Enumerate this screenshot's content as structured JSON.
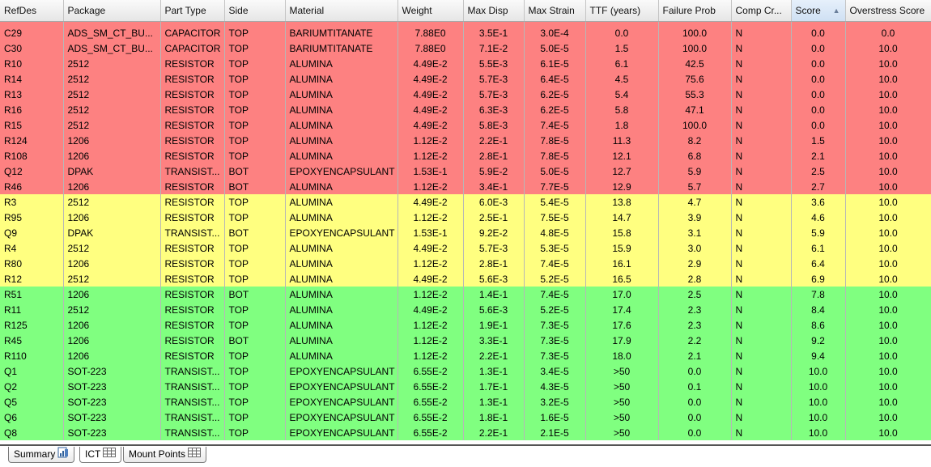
{
  "columns": [
    "RefDes",
    "Package",
    "Part Type",
    "Side",
    "Material",
    "Weight",
    "Max Disp",
    "Max Strain",
    "TTF (years)",
    "Failure Prob",
    "Comp Cr...",
    "Score",
    "Overstress Score"
  ],
  "sorted_column": "Score",
  "sort_direction": "ascending",
  "row_colors": {
    "red": "#fd8181",
    "yellow": "#ffff80",
    "green": "#80ff80"
  },
  "rows": [
    {
      "status": "red",
      "cells": [
        "C29",
        "ADS_SM_CT_BU...",
        "CAPACITOR",
        "TOP",
        "BARIUMTITANATE",
        "7.88E0",
        "3.5E-1",
        "3.0E-4",
        "0.0",
        "100.0",
        "N",
        "0.0",
        "0.0"
      ]
    },
    {
      "status": "red",
      "cells": [
        "C30",
        "ADS_SM_CT_BU...",
        "CAPACITOR",
        "TOP",
        "BARIUMTITANATE",
        "7.88E0",
        "7.1E-2",
        "5.0E-5",
        "1.5",
        "100.0",
        "N",
        "0.0",
        "10.0"
      ]
    },
    {
      "status": "red",
      "cells": [
        "R10",
        "2512",
        "RESISTOR",
        "TOP",
        "ALUMINA",
        "4.49E-2",
        "5.5E-3",
        "6.1E-5",
        "6.1",
        "42.5",
        "N",
        "0.0",
        "10.0"
      ]
    },
    {
      "status": "red",
      "cells": [
        "R14",
        "2512",
        "RESISTOR",
        "TOP",
        "ALUMINA",
        "4.49E-2",
        "5.7E-3",
        "6.4E-5",
        "4.5",
        "75.6",
        "N",
        "0.0",
        "10.0"
      ]
    },
    {
      "status": "red",
      "cells": [
        "R13",
        "2512",
        "RESISTOR",
        "TOP",
        "ALUMINA",
        "4.49E-2",
        "5.7E-3",
        "6.2E-5",
        "5.4",
        "55.3",
        "N",
        "0.0",
        "10.0"
      ]
    },
    {
      "status": "red",
      "cells": [
        "R16",
        "2512",
        "RESISTOR",
        "TOP",
        "ALUMINA",
        "4.49E-2",
        "6.3E-3",
        "6.2E-5",
        "5.8",
        "47.1",
        "N",
        "0.0",
        "10.0"
      ]
    },
    {
      "status": "red",
      "cells": [
        "R15",
        "2512",
        "RESISTOR",
        "TOP",
        "ALUMINA",
        "4.49E-2",
        "5.8E-3",
        "7.4E-5",
        "1.8",
        "100.0",
        "N",
        "0.0",
        "10.0"
      ]
    },
    {
      "status": "red",
      "cells": [
        "R124",
        "1206",
        "RESISTOR",
        "TOP",
        "ALUMINA",
        "1.12E-2",
        "2.2E-1",
        "7.8E-5",
        "11.3",
        "8.2",
        "N",
        "1.5",
        "10.0"
      ]
    },
    {
      "status": "red",
      "cells": [
        "R108",
        "1206",
        "RESISTOR",
        "TOP",
        "ALUMINA",
        "1.12E-2",
        "2.8E-1",
        "7.8E-5",
        "12.1",
        "6.8",
        "N",
        "2.1",
        "10.0"
      ]
    },
    {
      "status": "red",
      "cells": [
        "Q12",
        "DPAK",
        "TRANSIST...",
        "BOT",
        "EPOXYENCAPSULANT",
        "1.53E-1",
        "5.9E-2",
        "5.0E-5",
        "12.7",
        "5.9",
        "N",
        "2.5",
        "10.0"
      ]
    },
    {
      "status": "red",
      "cells": [
        "R46",
        "1206",
        "RESISTOR",
        "BOT",
        "ALUMINA",
        "1.12E-2",
        "3.4E-1",
        "7.7E-5",
        "12.9",
        "5.7",
        "N",
        "2.7",
        "10.0"
      ]
    },
    {
      "status": "yellow",
      "cells": [
        "R3",
        "2512",
        "RESISTOR",
        "TOP",
        "ALUMINA",
        "4.49E-2",
        "6.0E-3",
        "5.4E-5",
        "13.8",
        "4.7",
        "N",
        "3.6",
        "10.0"
      ]
    },
    {
      "status": "yellow",
      "cells": [
        "R95",
        "1206",
        "RESISTOR",
        "TOP",
        "ALUMINA",
        "1.12E-2",
        "2.5E-1",
        "7.5E-5",
        "14.7",
        "3.9",
        "N",
        "4.6",
        "10.0"
      ]
    },
    {
      "status": "yellow",
      "cells": [
        "Q9",
        "DPAK",
        "TRANSIST...",
        "BOT",
        "EPOXYENCAPSULANT",
        "1.53E-1",
        "9.2E-2",
        "4.8E-5",
        "15.8",
        "3.1",
        "N",
        "5.9",
        "10.0"
      ]
    },
    {
      "status": "yellow",
      "cells": [
        "R4",
        "2512",
        "RESISTOR",
        "TOP",
        "ALUMINA",
        "4.49E-2",
        "5.7E-3",
        "5.3E-5",
        "15.9",
        "3.0",
        "N",
        "6.1",
        "10.0"
      ]
    },
    {
      "status": "yellow",
      "cells": [
        "R80",
        "1206",
        "RESISTOR",
        "TOP",
        "ALUMINA",
        "1.12E-2",
        "2.8E-1",
        "7.4E-5",
        "16.1",
        "2.9",
        "N",
        "6.4",
        "10.0"
      ]
    },
    {
      "status": "yellow",
      "cells": [
        "R12",
        "2512",
        "RESISTOR",
        "TOP",
        "ALUMINA",
        "4.49E-2",
        "5.6E-3",
        "5.2E-5",
        "16.5",
        "2.8",
        "N",
        "6.9",
        "10.0"
      ]
    },
    {
      "status": "green",
      "cells": [
        "R51",
        "1206",
        "RESISTOR",
        "BOT",
        "ALUMINA",
        "1.12E-2",
        "1.4E-1",
        "7.4E-5",
        "17.0",
        "2.5",
        "N",
        "7.8",
        "10.0"
      ]
    },
    {
      "status": "green",
      "cells": [
        "R11",
        "2512",
        "RESISTOR",
        "TOP",
        "ALUMINA",
        "4.49E-2",
        "5.6E-3",
        "5.2E-5",
        "17.4",
        "2.3",
        "N",
        "8.4",
        "10.0"
      ]
    },
    {
      "status": "green",
      "cells": [
        "R125",
        "1206",
        "RESISTOR",
        "TOP",
        "ALUMINA",
        "1.12E-2",
        "1.9E-1",
        "7.3E-5",
        "17.6",
        "2.3",
        "N",
        "8.6",
        "10.0"
      ]
    },
    {
      "status": "green",
      "cells": [
        "R45",
        "1206",
        "RESISTOR",
        "BOT",
        "ALUMINA",
        "1.12E-2",
        "3.3E-1",
        "7.3E-5",
        "17.9",
        "2.2",
        "N",
        "9.2",
        "10.0"
      ]
    },
    {
      "status": "green",
      "cells": [
        "R110",
        "1206",
        "RESISTOR",
        "TOP",
        "ALUMINA",
        "1.12E-2",
        "2.2E-1",
        "7.3E-5",
        "18.0",
        "2.1",
        "N",
        "9.4",
        "10.0"
      ]
    },
    {
      "status": "green",
      "cells": [
        "Q1",
        "SOT-223",
        "TRANSIST...",
        "TOP",
        "EPOXYENCAPSULANT",
        "6.55E-2",
        "1.3E-1",
        "3.4E-5",
        ">50",
        "0.0",
        "N",
        "10.0",
        "10.0"
      ]
    },
    {
      "status": "green",
      "cells": [
        "Q2",
        "SOT-223",
        "TRANSIST...",
        "TOP",
        "EPOXYENCAPSULANT",
        "6.55E-2",
        "1.7E-1",
        "4.3E-5",
        ">50",
        "0.1",
        "N",
        "10.0",
        "10.0"
      ]
    },
    {
      "status": "green",
      "cells": [
        "Q5",
        "SOT-223",
        "TRANSIST...",
        "TOP",
        "EPOXYENCAPSULANT",
        "6.55E-2",
        "1.3E-1",
        "3.2E-5",
        ">50",
        "0.0",
        "N",
        "10.0",
        "10.0"
      ]
    },
    {
      "status": "green",
      "cells": [
        "Q6",
        "SOT-223",
        "TRANSIST...",
        "TOP",
        "EPOXYENCAPSULANT",
        "6.55E-2",
        "1.8E-1",
        "1.6E-5",
        ">50",
        "0.0",
        "N",
        "10.0",
        "10.0"
      ]
    },
    {
      "status": "green",
      "cells": [
        "Q8",
        "SOT-223",
        "TRANSIST...",
        "TOP",
        "EPOXYENCAPSULANT",
        "6.55E-2",
        "2.2E-1",
        "2.1E-5",
        ">50",
        "0.0",
        "N",
        "10.0",
        "10.0"
      ]
    }
  ],
  "tabs": [
    {
      "label": "Summary",
      "icon": "chart-doc-icon",
      "active": false
    },
    {
      "label": "ICT",
      "icon": "table-icon",
      "active": true
    },
    {
      "label": "Mount Points",
      "icon": "table-icon",
      "active": false
    }
  ]
}
